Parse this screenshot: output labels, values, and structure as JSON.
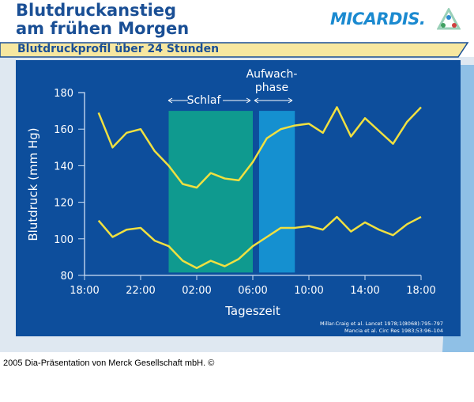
{
  "header": {
    "title_line1": "Blutdruckanstieg",
    "title_line2": "am frühen Morgen",
    "subtitle": "Blutdruckprofil über 24 Stunden",
    "logo_text": "MICARDIS",
    "logo_suffix": "."
  },
  "colors": {
    "panel": "#0d4e9c",
    "series": "#f0e040",
    "sleep": "#0f9a8f",
    "wake": "#1590d0",
    "band": "#f7e7a0"
  },
  "chart_data": {
    "type": "line",
    "title": "",
    "xlabel": "Tageszeit",
    "ylabel": "Blutdruck (mm Hg)",
    "ylim": [
      80,
      180
    ],
    "yticks": [
      "80",
      "100",
      "120",
      "140",
      "160",
      "180"
    ],
    "xticks": [
      "18:00",
      "22:00",
      "02:00",
      "06:00",
      "10:00",
      "14:00",
      "18:00"
    ],
    "x": [
      "19:00",
      "20:00",
      "21:00",
      "22:00",
      "23:00",
      "00:00",
      "01:00",
      "02:00",
      "03:00",
      "04:00",
      "05:00",
      "06:00",
      "07:00",
      "08:00",
      "09:00",
      "10:00",
      "11:00",
      "12:00",
      "13:00",
      "14:00",
      "15:00",
      "16:00",
      "17:00",
      "18:00"
    ],
    "series": [
      {
        "values": [
          169,
          150,
          158,
          160,
          148,
          140,
          130,
          128,
          136,
          133,
          132,
          142,
          155,
          160,
          162,
          163,
          158,
          172,
          156,
          166,
          159,
          152,
          164,
          172
        ]
      },
      {
        "values": [
          110,
          101,
          105,
          106,
          99,
          96,
          88,
          84,
          88,
          85,
          89,
          96,
          101,
          106,
          106,
          107,
          105,
          112,
          104,
          109,
          105,
          102,
          108,
          112
        ]
      }
    ],
    "regions": [
      {
        "label": "Schlaf",
        "from": "00:00",
        "to": "06:00"
      },
      {
        "label_line1": "Aufwach-",
        "label_line2": "phase",
        "from": "06:20",
        "to": "09:00"
      }
    ],
    "grid": false,
    "references": [
      "Millar-Craig et al. Lancet 1978;1(8068):795–797",
      "Mancia et al. Circ Res 1983;53:96–104"
    ]
  },
  "footer": "2005 Dia-Präsentation von Merck Gesellschaft mbH. ©"
}
